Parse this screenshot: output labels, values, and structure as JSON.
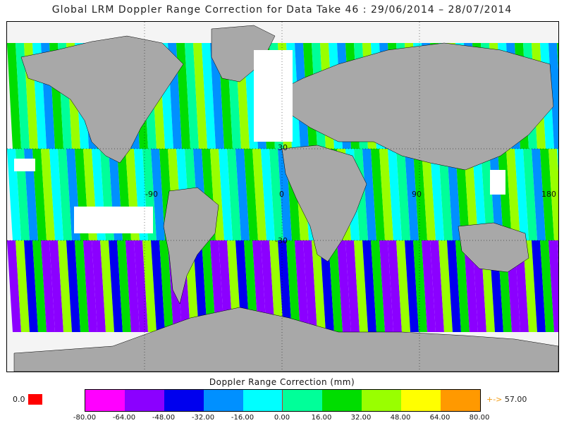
{
  "title": "Global LRM Doppler Range Correction for Data Take 46 : 29/06/2014 – 28/07/2014",
  "legend": {
    "title": "Doppler Range Correction (mm)",
    "under_value": "0.0",
    "under_color": "#ff0000",
    "over_arrow": "+->",
    "over_value": "57.00",
    "ticks": [
      "-80.00",
      "-64.00",
      "-48.00",
      "-32.00",
      "-16.00",
      "0.00",
      "16.00",
      "32.00",
      "48.00",
      "64.00",
      "80.00"
    ],
    "colors": [
      "#ff00ff",
      "#8b00ff",
      "#0000ee",
      "#0090ff",
      "#00ffff",
      "#00ff99",
      "#00dd00",
      "#99ff00",
      "#ffff00",
      "#ff9900"
    ]
  },
  "map": {
    "lat_labels": [
      "30",
      "-30"
    ],
    "lon_labels": [
      "-90",
      "0",
      "90",
      "180"
    ],
    "land_color": "#a8a8a8",
    "nodata_color": "#ffffff"
  }
}
